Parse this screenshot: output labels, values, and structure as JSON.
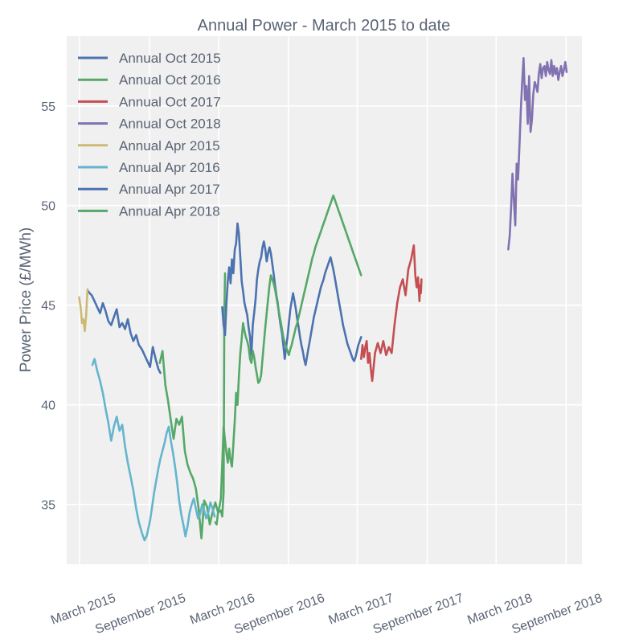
{
  "chart_data": {
    "type": "line",
    "title": "Annual Power - March 2015 to date",
    "xlabel": "",
    "ylabel": "Power Price (£/MWh)",
    "ylim": [
      32.0,
      58.5
    ],
    "y_ticks": [
      35,
      40,
      45,
      50,
      55
    ],
    "x_ticks": [
      {
        "label": "March 2015",
        "t": 2015.162
      },
      {
        "label": "September 2015",
        "t": 2015.666
      },
      {
        "label": "March 2016",
        "t": 2016.164
      },
      {
        "label": "September 2016",
        "t": 2016.667
      },
      {
        "label": "March 2017",
        "t": 2017.162
      },
      {
        "label": "September 2017",
        "t": 2017.666
      },
      {
        "label": "March 2018",
        "t": 2018.162
      },
      {
        "label": "September 2018",
        "t": 2018.666
      }
    ],
    "xlim": [
      2015.07,
      2018.78
    ],
    "legend_position": "top-left",
    "series": [
      {
        "name": "Annual Oct 2015",
        "color": "#4c72b0",
        "x": [
          2015.225,
          2015.235,
          2015.25,
          2015.27,
          2015.29,
          2015.31,
          2015.33,
          2015.35,
          2015.37,
          2015.39,
          2015.41,
          2015.43,
          2015.45,
          2015.47,
          2015.49,
          2015.51,
          2015.53,
          2015.55,
          2015.57,
          2015.59,
          2015.61,
          2015.63,
          2015.65,
          2015.67,
          2015.69,
          2015.71,
          2015.73,
          2015.745
        ],
        "y": [
          45.7,
          45.6,
          45.5,
          45.2,
          44.9,
          44.6,
          45.1,
          44.7,
          44.2,
          44.0,
          44.4,
          44.8,
          43.9,
          44.1,
          43.8,
          44.3,
          43.6,
          43.2,
          43.5,
          43.0,
          42.8,
          42.5,
          42.2,
          41.9,
          42.9,
          42.3,
          41.8,
          41.6
        ]
      },
      {
        "name": "Annual Oct 2016",
        "color": "#55a868",
        "x": [
          2015.74,
          2015.76,
          2015.78,
          2015.8,
          2015.82,
          2015.84,
          2015.86,
          2015.88,
          2015.9,
          2015.92,
          2015.94,
          2015.96,
          2015.98,
          2016.0,
          2016.02,
          2016.04,
          2016.06,
          2016.08,
          2016.1,
          2016.12,
          2016.14,
          2016.16,
          2016.18,
          2016.19,
          2016.2,
          2016.205,
          2016.21
        ],
        "y": [
          42.1,
          42.7,
          41.0,
          40.2,
          39.2,
          38.3,
          39.3,
          39.0,
          39.4,
          37.7,
          37.0,
          36.6,
          36.3,
          35.8,
          34.8,
          33.3,
          35.2,
          34.9,
          34.0,
          34.6,
          35.1,
          34.6,
          34.7,
          34.4,
          35.6,
          44.5,
          46.6
        ]
      },
      {
        "name": "Annual Oct 2017",
        "color": "#c44e52",
        "x": [
          2017.19,
          2017.2,
          2017.21,
          2017.22,
          2017.23,
          2017.24,
          2017.25,
          2017.26,
          2017.27,
          2017.29,
          2017.31,
          2017.33,
          2017.35,
          2017.37,
          2017.39,
          2017.41,
          2017.43,
          2017.45,
          2017.47,
          2017.49,
          2017.51,
          2017.53,
          2017.55,
          2017.57,
          2017.58,
          2017.59,
          2017.6,
          2017.61,
          2017.615,
          2017.62,
          2017.625
        ],
        "y": [
          42.3,
          43.0,
          42.4,
          42.9,
          43.2,
          42.1,
          42.6,
          41.8,
          41.2,
          42.6,
          43.1,
          42.6,
          43.2,
          42.5,
          42.9,
          42.6,
          44.0,
          45.1,
          45.9,
          46.3,
          45.5,
          46.8,
          47.3,
          48.0,
          46.5,
          45.9,
          46.4,
          45.2,
          46.0,
          45.6,
          46.3
        ]
      },
      {
        "name": "Annual Oct 2018",
        "color": "#8172b2",
        "x": [
          2018.25,
          2018.26,
          2018.27,
          2018.28,
          2018.29,
          2018.3,
          2018.31,
          2018.32,
          2018.33,
          2018.34,
          2018.35,
          2018.36,
          2018.37,
          2018.38,
          2018.39,
          2018.4,
          2018.41,
          2018.42,
          2018.43,
          2018.44,
          2018.45,
          2018.46,
          2018.47,
          2018.48,
          2018.49,
          2018.5,
          2018.51,
          2018.52,
          2018.53,
          2018.54,
          2018.55,
          2018.56,
          2018.57,
          2018.58,
          2018.59,
          2018.6,
          2018.61,
          2018.62,
          2018.63,
          2018.64,
          2018.65,
          2018.66,
          2018.67
        ],
        "y": [
          47.8,
          48.5,
          49.9,
          51.6,
          50.3,
          49.0,
          52.1,
          51.3,
          53.0,
          54.8,
          56.2,
          57.4,
          55.3,
          56.0,
          54.1,
          56.5,
          53.7,
          54.3,
          55.6,
          56.2,
          56.0,
          55.7,
          56.6,
          57.1,
          56.4,
          56.9,
          57.0,
          56.5,
          57.2,
          56.8,
          56.6,
          57.3,
          56.5,
          57.0,
          56.6,
          56.9,
          56.3,
          56.7,
          57.0,
          56.5,
          56.8,
          57.2,
          56.7
        ]
      },
      {
        "name": "Annual Apr 2015",
        "color": "#ccb974",
        "x": [
          2015.16,
          2015.17,
          2015.18,
          2015.19,
          2015.2,
          2015.21,
          2015.22
        ],
        "y": [
          45.4,
          44.9,
          44.1,
          44.3,
          43.7,
          44.5,
          45.8
        ]
      },
      {
        "name": "Annual Apr 2016",
        "color": "#64b5cd",
        "x": [
          2015.255,
          2015.27,
          2015.29,
          2015.31,
          2015.33,
          2015.35,
          2015.37,
          2015.39,
          2015.41,
          2015.43,
          2015.45,
          2015.47,
          2015.49,
          2015.51,
          2015.53,
          2015.55,
          2015.57,
          2015.59,
          2015.61,
          2015.63,
          2015.645,
          2015.655,
          2015.67,
          2015.685,
          2015.7,
          2015.715,
          2015.73,
          2015.745,
          2015.76,
          2015.775,
          2015.79,
          2015.805,
          2015.82,
          2015.835,
          2015.85,
          2015.865,
          2015.88,
          2015.895,
          2015.91,
          2015.925,
          2015.94,
          2015.955,
          2015.97,
          2015.985,
          2016.0,
          2016.015,
          2016.03,
          2016.045,
          2016.06,
          2016.075,
          2016.09,
          2016.105,
          2016.12,
          2016.135
        ],
        "y": [
          42.0,
          42.3,
          41.7,
          41.2,
          40.6,
          39.8,
          39.1,
          38.2,
          38.9,
          39.4,
          38.7,
          39.0,
          37.9,
          37.1,
          36.4,
          35.7,
          34.8,
          34.1,
          33.6,
          33.2,
          33.4,
          33.7,
          34.2,
          34.9,
          35.6,
          36.2,
          36.8,
          37.3,
          37.7,
          38.1,
          38.6,
          38.9,
          38.2,
          37.6,
          36.9,
          36.1,
          35.2,
          34.5,
          34.0,
          33.4,
          33.9,
          34.6,
          35.0,
          35.3,
          34.8,
          34.3,
          34.5,
          35.0,
          34.7,
          34.3,
          34.6,
          35.1,
          34.8,
          34.4
        ]
      },
      {
        "name": "Annual Apr 2017",
        "color": "#4c72b0",
        "x": [
          2016.19,
          2016.2,
          2016.21,
          2016.22,
          2016.23,
          2016.24,
          2016.25,
          2016.26,
          2016.27,
          2016.28,
          2016.29,
          2016.3,
          2016.31,
          2016.32,
          2016.33,
          2016.34,
          2016.35,
          2016.36,
          2016.37,
          2016.38,
          2016.39,
          2016.4,
          2016.41,
          2016.42,
          2016.43,
          2016.44,
          2016.45,
          2016.46,
          2016.47,
          2016.48,
          2016.49,
          2016.5,
          2016.51,
          2016.52,
          2016.53,
          2016.54,
          2016.55,
          2016.56,
          2016.57,
          2016.58,
          2016.59,
          2016.6,
          2016.61,
          2016.62,
          2016.63,
          2016.64,
          2016.65,
          2016.66,
          2016.67,
          2016.68,
          2016.69,
          2016.7,
          2016.71,
          2016.72,
          2016.73,
          2016.74,
          2016.75,
          2016.76,
          2016.77,
          2016.78,
          2016.79,
          2016.8,
          2016.81,
          2016.82,
          2016.83,
          2016.84,
          2016.85,
          2016.86,
          2016.87,
          2016.88,
          2016.89,
          2016.9,
          2016.91,
          2016.92,
          2016.93,
          2016.94,
          2016.95,
          2016.96,
          2016.97,
          2016.98,
          2016.99,
          2017.0,
          2017.01,
          2017.02,
          2017.03,
          2017.04,
          2017.05,
          2017.06,
          2017.07,
          2017.08,
          2017.09,
          2017.1,
          2017.11,
          2017.12,
          2017.13,
          2017.14,
          2017.15,
          2017.16,
          2017.17,
          2017.18,
          2017.19
        ],
        "y": [
          44.9,
          44.0,
          43.5,
          45.1,
          46.2,
          46.9,
          46.1,
          47.3,
          46.6,
          47.8,
          48.1,
          49.1,
          48.6,
          47.4,
          46.2,
          45.7,
          45.1,
          44.8,
          44.5,
          43.9,
          43.4,
          42.5,
          44.0,
          44.6,
          45.3,
          46.3,
          46.8,
          47.2,
          47.4,
          47.9,
          48.2,
          47.8,
          47.2,
          47.6,
          47.9,
          47.6,
          47.1,
          46.6,
          46.0,
          45.5,
          45.1,
          44.5,
          44.0,
          43.6,
          43.0,
          42.3,
          42.9,
          43.4,
          44.1,
          44.8,
          45.2,
          45.6,
          45.2,
          44.8,
          44.3,
          43.9,
          43.4,
          43.0,
          42.7,
          42.3,
          42.0,
          42.4,
          42.8,
          43.2,
          43.6,
          44.0,
          44.4,
          44.7,
          45.0,
          45.3,
          45.6,
          45.9,
          46.1,
          46.3,
          46.6,
          46.8,
          47.0,
          47.2,
          47.4,
          47.1,
          46.8,
          46.4,
          46.0,
          45.6,
          45.2,
          44.8,
          44.4,
          44.0,
          43.7,
          43.4,
          43.1,
          42.9,
          42.7,
          42.5,
          42.3,
          42.2,
          42.4,
          42.7,
          43.0,
          43.2,
          43.4
        ]
      },
      {
        "name": "Annual Apr 2018",
        "color": "#55a868",
        "x": [
          2016.14,
          2016.15,
          2016.16,
          2016.17,
          2016.18,
          2016.19,
          2016.2,
          2016.21,
          2016.22,
          2016.23,
          2016.24,
          2016.25,
          2016.26,
          2016.27,
          2016.28,
          2016.29,
          2016.3,
          2016.31,
          2016.32,
          2016.33,
          2016.34,
          2016.35,
          2016.36,
          2016.37,
          2016.38,
          2016.39,
          2016.4,
          2016.41,
          2016.42,
          2016.43,
          2016.44,
          2016.45,
          2016.46,
          2016.47,
          2016.48,
          2016.49,
          2016.5,
          2016.51,
          2016.52,
          2016.53,
          2016.54,
          2016.55,
          2016.56,
          2016.57,
          2016.58,
          2016.59,
          2016.6,
          2016.61,
          2016.62,
          2016.63,
          2016.64,
          2016.65,
          2016.66,
          2016.67,
          2016.68,
          2016.69,
          2016.7,
          2016.71,
          2016.72,
          2016.73,
          2016.74,
          2016.75,
          2016.76,
          2016.77,
          2016.78,
          2016.79,
          2016.8,
          2016.81,
          2016.82,
          2016.83,
          2016.84,
          2016.85,
          2016.86,
          2016.87,
          2016.88,
          2016.89,
          2016.9,
          2016.91,
          2016.92,
          2016.93,
          2016.94,
          2016.95,
          2016.96,
          2016.97,
          2016.98,
          2016.99,
          2017.0,
          2017.01,
          2017.02,
          2017.03,
          2017.04,
          2017.05,
          2017.06,
          2017.07,
          2017.08,
          2017.09,
          2017.1,
          2017.11,
          2017.12,
          2017.13,
          2017.14,
          2017.15,
          2017.16,
          2017.17,
          2017.18,
          2017.19
        ],
        "y": [
          34.1,
          34.0,
          34.6,
          34.9,
          35.3,
          37.0,
          38.9,
          38.2,
          37.6,
          37.1,
          37.8,
          37.2,
          36.9,
          38.0,
          39.2,
          40.6,
          40.0,
          41.4,
          42.6,
          43.3,
          44.1,
          43.7,
          43.4,
          43.2,
          42.9,
          42.3,
          42.1,
          42.7,
          42.4,
          41.9,
          41.5,
          41.1,
          41.2,
          41.5,
          42.3,
          43.1,
          43.9,
          44.6,
          45.3,
          46.0,
          46.5,
          46.3,
          46.1,
          45.8,
          45.4,
          45.0,
          44.6,
          44.2,
          43.8,
          43.4,
          43.1,
          42.9,
          42.7,
          42.5,
          42.8,
          43.0,
          43.3,
          43.6,
          43.9,
          44.1,
          44.4,
          44.7,
          45.0,
          45.3,
          45.6,
          45.9,
          46.2,
          46.5,
          46.8,
          47.1,
          47.4,
          47.6,
          47.9,
          48.1,
          48.3,
          48.5,
          48.7,
          48.9,
          49.1,
          49.3,
          49.5,
          49.7,
          49.9,
          50.1,
          50.3,
          50.5,
          50.3,
          50.1,
          49.9,
          49.7,
          49.5,
          49.3,
          49.1,
          48.9,
          48.7,
          48.5,
          48.3,
          48.1,
          47.9,
          47.7,
          47.5,
          47.3,
          47.1,
          46.9,
          46.7,
          46.5
        ]
      }
    ]
  }
}
